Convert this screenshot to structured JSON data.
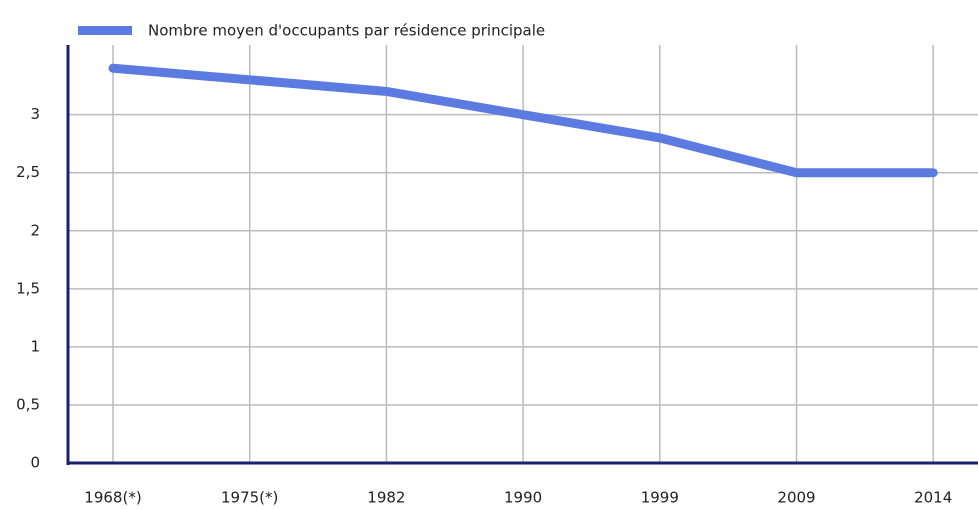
{
  "chart_data": {
    "type": "line",
    "categories": [
      "1968(*)",
      "1975(*)",
      "1982",
      "1990",
      "1999",
      "2009",
      "2014"
    ],
    "series": [
      {
        "name": "Nombre moyen d'occupants par résidence principale",
        "color": "#5b7be0",
        "values": [
          3.4,
          3.3,
          3.2,
          3.0,
          2.8,
          2.5,
          2.5
        ]
      }
    ],
    "ylim": [
      0,
      3.6
    ],
    "yticks": [
      0,
      {
        "value": 0.5,
        "label": "0,5"
      },
      1,
      {
        "value": 1.5,
        "label": "1,5"
      },
      2,
      {
        "value": 2.5,
        "label": "2,5"
      },
      3
    ],
    "grid": true,
    "legend": "top-left"
  }
}
